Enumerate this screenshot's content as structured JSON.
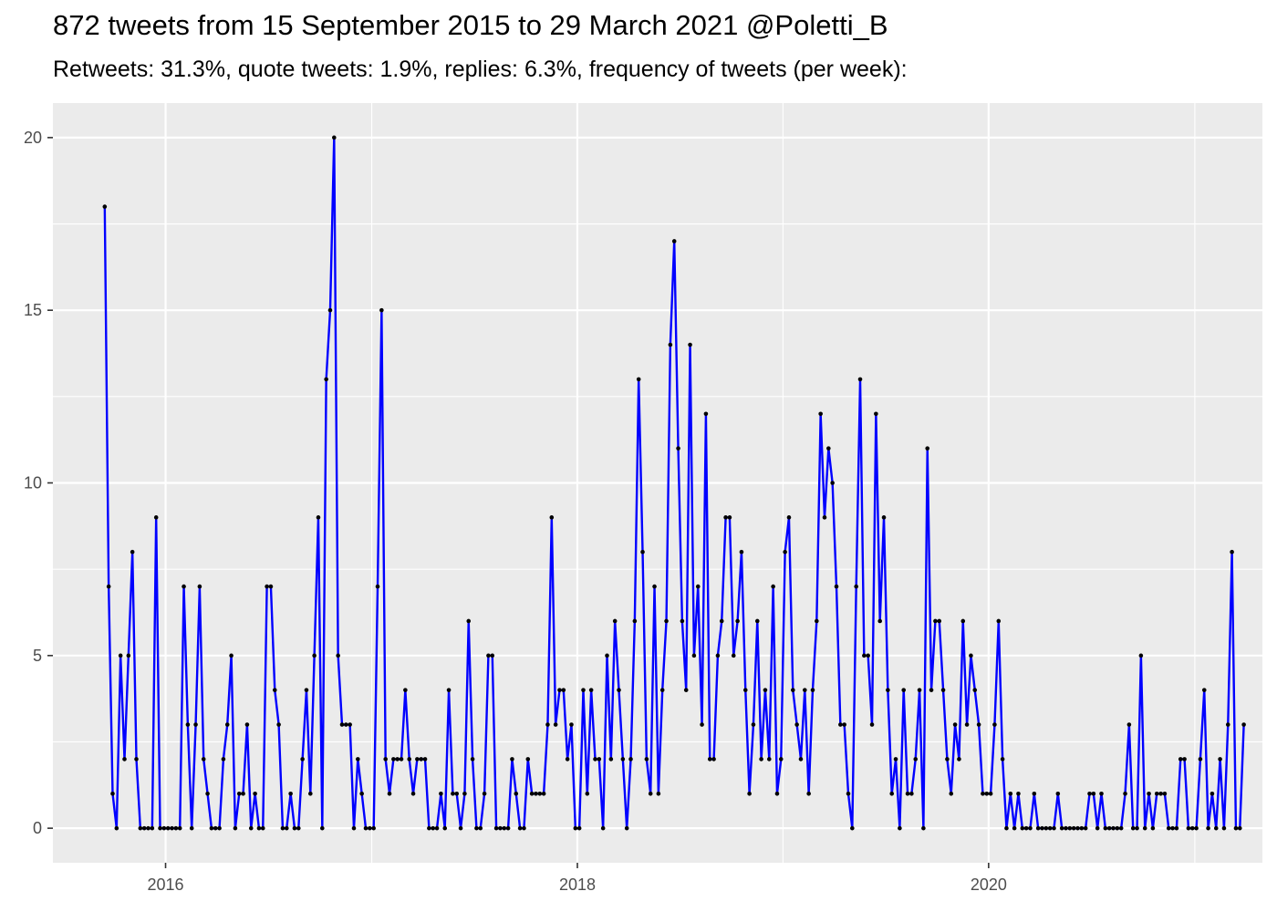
{
  "title": "872 tweets from 15 September 2015 to 29 March 2021 @Poletti_B",
  "subtitle": "Retweets: 31.3%, quote tweets: 1.9%, replies: 6.3%, frequency of tweets (per week):",
  "colors": {
    "line": "#0000ff",
    "point": "#000000",
    "panel": "#ebebeb",
    "grid": "#ffffff",
    "tick_text": "#4d4d4d"
  },
  "chart_data": {
    "type": "line",
    "grid": true,
    "legend": "none",
    "xlabel": "",
    "ylabel": "",
    "x_axis": {
      "start_date": "2015-09-15",
      "end_date": "2021-03-29",
      "range": [
        "2015-06-15",
        "2021-05-01"
      ],
      "tick_labels": [
        "2016",
        "2018",
        "2020"
      ],
      "tick_dates": [
        "2016-01-01",
        "2018-01-01",
        "2020-01-01"
      ],
      "minor_tick_dates": [
        "2017-01-01",
        "2019-01-01",
        "2021-01-01"
      ]
    },
    "y_axis": {
      "range": [
        -1,
        21
      ],
      "ticks": [
        0,
        5,
        10,
        15,
        20
      ],
      "tick_labels": [
        "0",
        "5",
        "10",
        "15",
        "20"
      ]
    },
    "series": [
      {
        "name": "tweets per week",
        "values": [
          18,
          7,
          1,
          0,
          5,
          2,
          5,
          8,
          2,
          0,
          0,
          0,
          0,
          9,
          0,
          0,
          0,
          0,
          0,
          0,
          7,
          3,
          0,
          3,
          7,
          2,
          1,
          0,
          0,
          0,
          2,
          3,
          5,
          0,
          1,
          1,
          3,
          0,
          1,
          0,
          0,
          7,
          7,
          4,
          3,
          0,
          0,
          1,
          0,
          0,
          2,
          4,
          1,
          5,
          9,
          0,
          13,
          15,
          20,
          5,
          3,
          3,
          3,
          0,
          2,
          1,
          0,
          0,
          0,
          7,
          15,
          2,
          1,
          2,
          2,
          2,
          4,
          2,
          1,
          2,
          2,
          2,
          0,
          0,
          0,
          1,
          0,
          4,
          1,
          1,
          0,
          1,
          6,
          2,
          0,
          0,
          1,
          5,
          5,
          0,
          0,
          0,
          0,
          2,
          1,
          0,
          0,
          2,
          1,
          1,
          1,
          1,
          3,
          9,
          3,
          4,
          4,
          2,
          3,
          0,
          0,
          4,
          1,
          4,
          2,
          2,
          0,
          5,
          2,
          6,
          4,
          2,
          0,
          2,
          6,
          13,
          8,
          2,
          1,
          7,
          1,
          4,
          6,
          14,
          17,
          11,
          6,
          4,
          14,
          5,
          7,
          3,
          12,
          2,
          2,
          5,
          6,
          9,
          9,
          5,
          6,
          8,
          4,
          1,
          3,
          6,
          2,
          4,
          2,
          7,
          1,
          2,
          8,
          9,
          4,
          3,
          2,
          4,
          1,
          4,
          6,
          12,
          9,
          11,
          10,
          7,
          3,
          3,
          1,
          0,
          7,
          13,
          5,
          5,
          3,
          12,
          6,
          9,
          4,
          1,
          2,
          0,
          4,
          1,
          1,
          2,
          4,
          0,
          11,
          4,
          6,
          6,
          4,
          2,
          1,
          3,
          2,
          6,
          3,
          5,
          4,
          3,
          1,
          1,
          1,
          3,
          6,
          2,
          0,
          1,
          0,
          1,
          0,
          0,
          0,
          1,
          0,
          0,
          0,
          0,
          0,
          1,
          0,
          0,
          0,
          0,
          0,
          0,
          0,
          1,
          1,
          0,
          1,
          0,
          0,
          0,
          0,
          0,
          1,
          3,
          0,
          0,
          5,
          0,
          1,
          0,
          1,
          1,
          1,
          0,
          0,
          0,
          2,
          2,
          0,
          0,
          0,
          2,
          4,
          0,
          1,
          0,
          2,
          0,
          3,
          8,
          0,
          0,
          3
        ]
      }
    ]
  }
}
